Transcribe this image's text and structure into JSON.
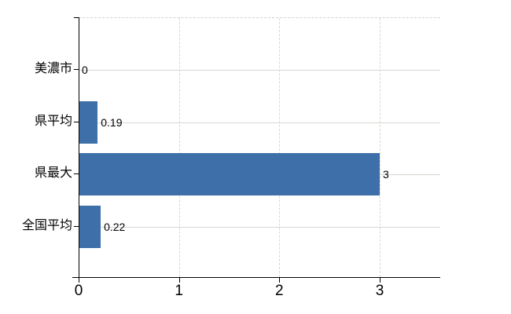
{
  "chart_data": {
    "type": "bar",
    "orientation": "horizontal",
    "title": "",
    "legend": "none",
    "grid": "on",
    "categories": [
      "美濃市",
      "県平均",
      "県最大",
      "全国平均"
    ],
    "values": [
      0,
      0.19,
      3,
      0.22
    ],
    "value_labels": [
      "0",
      "0.19",
      "3",
      "0.22"
    ],
    "x_tick_labels": [
      "0",
      "1",
      "2",
      "3"
    ],
    "x_tick_values": [
      0,
      1,
      2,
      3
    ],
    "xlim": [
      0,
      3.6
    ],
    "colors": {
      "bar": "#3e6fa9",
      "h_gridline": "#d3d9d0",
      "v_gridline": "#d3d9d0",
      "plot_top_border": "#d4ced2",
      "axis": "#000000",
      "text": "#000000",
      "background": "#ffffff"
    }
  }
}
